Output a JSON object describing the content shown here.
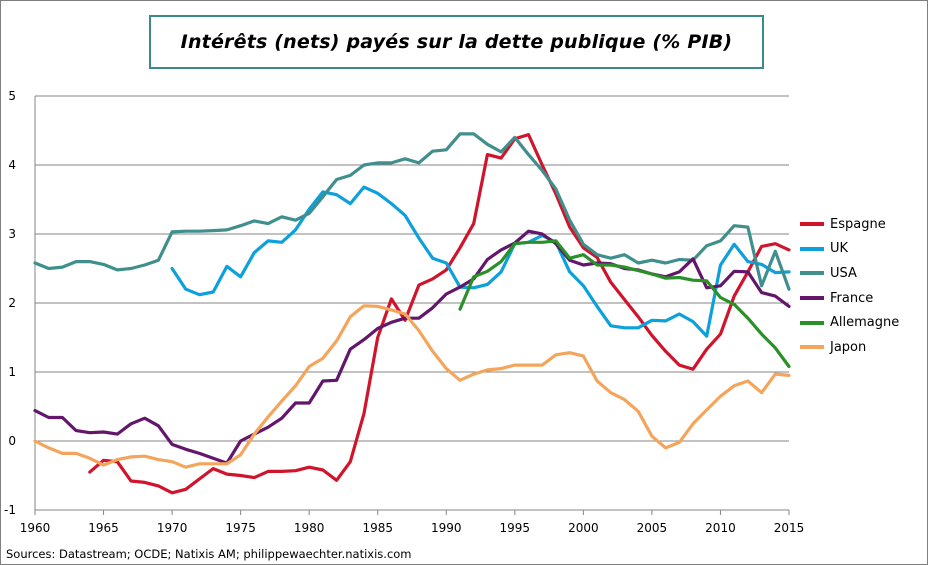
{
  "title": "Intérêts (nets) payés sur la dette publique (% PIB)",
  "source": "Sources: Datastream; OCDE; Natixis AM; philippewaechter.natixis.com",
  "chart_data": {
    "type": "line",
    "title": "Intérêts (nets) payés sur la dette publique (% PIB)",
    "xlabel": "",
    "ylabel": "",
    "xlim": [
      1960,
      2015
    ],
    "ylim": [
      -1,
      5
    ],
    "x_ticks": [
      "1960",
      "1965",
      "1970",
      "1975",
      "1980",
      "1985",
      "1990",
      "1995",
      "2000",
      "2005",
      "2010",
      "2015"
    ],
    "y_ticks": [
      "-1",
      "0",
      "1",
      "2",
      "3",
      "4",
      "5"
    ],
    "grid": "horizontal",
    "legend_position": "right",
    "series": [
      {
        "name": "Espagne",
        "color": "#d0142c",
        "points": [
          [
            1964,
            -0.45
          ],
          [
            1965,
            -0.28
          ],
          [
            1966,
            -0.3
          ],
          [
            1967,
            -0.58
          ],
          [
            1968,
            -0.6
          ],
          [
            1969,
            -0.65
          ],
          [
            1970,
            -0.75
          ],
          [
            1971,
            -0.7
          ],
          [
            1972,
            -0.55
          ],
          [
            1973,
            -0.4
          ],
          [
            1974,
            -0.48
          ],
          [
            1975,
            -0.5
          ],
          [
            1976,
            -0.53
          ],
          [
            1977,
            -0.44
          ],
          [
            1978,
            -0.44
          ],
          [
            1979,
            -0.43
          ],
          [
            1980,
            -0.38
          ],
          [
            1981,
            -0.42
          ],
          [
            1982,
            -0.57
          ],
          [
            1983,
            -0.3
          ],
          [
            1984,
            0.4
          ],
          [
            1985,
            1.5
          ],
          [
            1986,
            2.06
          ],
          [
            1987,
            1.75
          ],
          [
            1988,
            2.26
          ],
          [
            1989,
            2.35
          ],
          [
            1990,
            2.48
          ],
          [
            1991,
            2.8
          ],
          [
            1992,
            3.15
          ],
          [
            1993,
            4.15
          ],
          [
            1994,
            4.1
          ],
          [
            1995,
            4.38
          ],
          [
            1996,
            4.44
          ],
          [
            1997,
            4.0
          ],
          [
            1998,
            3.58
          ],
          [
            1999,
            3.1
          ],
          [
            2000,
            2.8
          ],
          [
            2001,
            2.66
          ],
          [
            2002,
            2.3
          ],
          [
            2003,
            2.05
          ],
          [
            2004,
            1.8
          ],
          [
            2005,
            1.53
          ],
          [
            2006,
            1.3
          ],
          [
            2007,
            1.1
          ],
          [
            2008,
            1.04
          ],
          [
            2009,
            1.33
          ],
          [
            2010,
            1.55
          ],
          [
            2011,
            2.1
          ],
          [
            2012,
            2.45
          ],
          [
            2013,
            2.82
          ],
          [
            2014,
            2.86
          ],
          [
            2015,
            2.77
          ]
        ]
      },
      {
        "name": "UK",
        "color": "#0ca0dc",
        "points": [
          [
            1970,
            2.5
          ],
          [
            1971,
            2.2
          ],
          [
            1972,
            2.12
          ],
          [
            1973,
            2.16
          ],
          [
            1974,
            2.53
          ],
          [
            1975,
            2.38
          ],
          [
            1976,
            2.73
          ],
          [
            1977,
            2.9
          ],
          [
            1978,
            2.88
          ],
          [
            1979,
            3.06
          ],
          [
            1980,
            3.36
          ],
          [
            1981,
            3.61
          ],
          [
            1982,
            3.57
          ],
          [
            1983,
            3.44
          ],
          [
            1984,
            3.68
          ],
          [
            1985,
            3.59
          ],
          [
            1986,
            3.44
          ],
          [
            1987,
            3.27
          ],
          [
            1988,
            2.94
          ],
          [
            1989,
            2.65
          ],
          [
            1990,
            2.58
          ],
          [
            1991,
            2.23
          ],
          [
            1992,
            2.22
          ],
          [
            1993,
            2.27
          ],
          [
            1994,
            2.45
          ],
          [
            1995,
            2.86
          ],
          [
            1996,
            2.88
          ],
          [
            1997,
            2.98
          ],
          [
            1998,
            2.88
          ],
          [
            1999,
            2.45
          ],
          [
            2000,
            2.25
          ],
          [
            2001,
            1.95
          ],
          [
            2002,
            1.67
          ],
          [
            2003,
            1.64
          ],
          [
            2004,
            1.64
          ],
          [
            2005,
            1.75
          ],
          [
            2006,
            1.74
          ],
          [
            2007,
            1.84
          ],
          [
            2008,
            1.73
          ],
          [
            2009,
            1.52
          ],
          [
            2010,
            2.55
          ],
          [
            2011,
            2.85
          ],
          [
            2012,
            2.6
          ],
          [
            2013,
            2.56
          ],
          [
            2014,
            2.44
          ],
          [
            2015,
            2.45
          ]
        ]
      },
      {
        "name": "USA",
        "color": "#3f8f8d",
        "points": [
          [
            1960,
            2.58
          ],
          [
            1961,
            2.5
          ],
          [
            1962,
            2.52
          ],
          [
            1963,
            2.6
          ],
          [
            1964,
            2.6
          ],
          [
            1965,
            2.56
          ],
          [
            1966,
            2.48
          ],
          [
            1967,
            2.5
          ],
          [
            1968,
            2.55
          ],
          [
            1969,
            2.62
          ],
          [
            1970,
            3.03
          ],
          [
            1971,
            3.04
          ],
          [
            1972,
            3.04
          ],
          [
            1973,
            3.05
          ],
          [
            1974,
            3.06
          ],
          [
            1975,
            3.12
          ],
          [
            1976,
            3.19
          ],
          [
            1977,
            3.15
          ],
          [
            1978,
            3.25
          ],
          [
            1979,
            3.2
          ],
          [
            1980,
            3.3
          ],
          [
            1981,
            3.54
          ],
          [
            1982,
            3.79
          ],
          [
            1983,
            3.85
          ],
          [
            1984,
            4.0
          ],
          [
            1985,
            4.03
          ],
          [
            1986,
            4.03
          ],
          [
            1987,
            4.09
          ],
          [
            1988,
            4.03
          ],
          [
            1989,
            4.2
          ],
          [
            1990,
            4.22
          ],
          [
            1991,
            4.45
          ],
          [
            1992,
            4.45
          ],
          [
            1993,
            4.3
          ],
          [
            1994,
            4.19
          ],
          [
            1995,
            4.4
          ],
          [
            1996,
            4.15
          ],
          [
            1997,
            3.92
          ],
          [
            1998,
            3.65
          ],
          [
            1999,
            3.2
          ],
          [
            2000,
            2.85
          ],
          [
            2001,
            2.7
          ],
          [
            2002,
            2.65
          ],
          [
            2003,
            2.7
          ],
          [
            2004,
            2.58
          ],
          [
            2005,
            2.62
          ],
          [
            2006,
            2.58
          ],
          [
            2007,
            2.63
          ],
          [
            2008,
            2.62
          ],
          [
            2009,
            2.83
          ],
          [
            2010,
            2.9
          ],
          [
            2011,
            3.12
          ],
          [
            2012,
            3.1
          ],
          [
            2013,
            2.25
          ],
          [
            2014,
            2.75
          ],
          [
            2015,
            2.2
          ]
        ]
      },
      {
        "name": "France",
        "color": "#62176b",
        "points": [
          [
            1960,
            0.44
          ],
          [
            1961,
            0.34
          ],
          [
            1962,
            0.34
          ],
          [
            1963,
            0.15
          ],
          [
            1964,
            0.12
          ],
          [
            1965,
            0.13
          ],
          [
            1966,
            0.1
          ],
          [
            1967,
            0.25
          ],
          [
            1968,
            0.33
          ],
          [
            1969,
            0.22
          ],
          [
            1970,
            -0.05
          ],
          [
            1971,
            -0.12
          ],
          [
            1972,
            -0.18
          ],
          [
            1973,
            -0.25
          ],
          [
            1974,
            -0.32
          ],
          [
            1975,
            0.0
          ],
          [
            1976,
            0.1
          ],
          [
            1977,
            0.2
          ],
          [
            1978,
            0.33
          ],
          [
            1979,
            0.55
          ],
          [
            1980,
            0.55
          ],
          [
            1981,
            0.87
          ],
          [
            1982,
            0.88
          ],
          [
            1983,
            1.33
          ],
          [
            1984,
            1.47
          ],
          [
            1985,
            1.63
          ],
          [
            1986,
            1.72
          ],
          [
            1987,
            1.78
          ],
          [
            1988,
            1.78
          ],
          [
            1989,
            1.93
          ],
          [
            1990,
            2.13
          ],
          [
            1991,
            2.23
          ],
          [
            1992,
            2.35
          ],
          [
            1993,
            2.63
          ],
          [
            1994,
            2.77
          ],
          [
            1995,
            2.87
          ],
          [
            1996,
            3.04
          ],
          [
            1997,
            3.0
          ],
          [
            1998,
            2.86
          ],
          [
            1999,
            2.62
          ],
          [
            2000,
            2.55
          ],
          [
            2001,
            2.58
          ],
          [
            2002,
            2.57
          ],
          [
            2003,
            2.5
          ],
          [
            2004,
            2.48
          ],
          [
            2005,
            2.42
          ],
          [
            2006,
            2.38
          ],
          [
            2007,
            2.45
          ],
          [
            2008,
            2.64
          ],
          [
            2009,
            2.22
          ],
          [
            2010,
            2.25
          ],
          [
            2011,
            2.46
          ],
          [
            2012,
            2.45
          ],
          [
            2013,
            2.15
          ],
          [
            2014,
            2.1
          ],
          [
            2015,
            1.95
          ]
        ]
      },
      {
        "name": "Allemagne",
        "color": "#299128",
        "points": [
          [
            1991,
            1.91
          ],
          [
            1992,
            2.38
          ],
          [
            1993,
            2.46
          ],
          [
            1994,
            2.6
          ],
          [
            1995,
            2.86
          ],
          [
            1996,
            2.88
          ],
          [
            1997,
            2.88
          ],
          [
            1998,
            2.9
          ],
          [
            1999,
            2.65
          ],
          [
            2000,
            2.7
          ],
          [
            2001,
            2.55
          ],
          [
            2002,
            2.55
          ],
          [
            2003,
            2.52
          ],
          [
            2004,
            2.47
          ],
          [
            2005,
            2.42
          ],
          [
            2006,
            2.36
          ],
          [
            2007,
            2.37
          ],
          [
            2008,
            2.33
          ],
          [
            2009,
            2.32
          ],
          [
            2010,
            2.08
          ],
          [
            2011,
            1.98
          ],
          [
            2012,
            1.78
          ],
          [
            2013,
            1.55
          ],
          [
            2014,
            1.35
          ],
          [
            2015,
            1.08
          ]
        ]
      },
      {
        "name": "Japon",
        "color": "#f4a55c",
        "points": [
          [
            1960,
            0.0
          ],
          [
            1961,
            -0.1
          ],
          [
            1962,
            -0.18
          ],
          [
            1963,
            -0.18
          ],
          [
            1964,
            -0.25
          ],
          [
            1965,
            -0.35
          ],
          [
            1966,
            -0.27
          ],
          [
            1967,
            -0.23
          ],
          [
            1968,
            -0.22
          ],
          [
            1969,
            -0.27
          ],
          [
            1970,
            -0.3
          ],
          [
            1971,
            -0.38
          ],
          [
            1972,
            -0.33
          ],
          [
            1973,
            -0.33
          ],
          [
            1974,
            -0.33
          ],
          [
            1975,
            -0.2
          ],
          [
            1976,
            0.1
          ],
          [
            1977,
            0.35
          ],
          [
            1978,
            0.58
          ],
          [
            1979,
            0.8
          ],
          [
            1980,
            1.08
          ],
          [
            1981,
            1.2
          ],
          [
            1982,
            1.45
          ],
          [
            1983,
            1.8
          ],
          [
            1984,
            1.96
          ],
          [
            1985,
            1.95
          ],
          [
            1986,
            1.9
          ],
          [
            1987,
            1.84
          ],
          [
            1988,
            1.6
          ],
          [
            1989,
            1.3
          ],
          [
            1990,
            1.05
          ],
          [
            1991,
            0.88
          ],
          [
            1992,
            0.97
          ],
          [
            1993,
            1.03
          ],
          [
            1994,
            1.05
          ],
          [
            1995,
            1.1
          ],
          [
            1996,
            1.1
          ],
          [
            1997,
            1.1
          ],
          [
            1998,
            1.25
          ],
          [
            1999,
            1.28
          ],
          [
            2000,
            1.23
          ],
          [
            2001,
            0.87
          ],
          [
            2002,
            0.7
          ],
          [
            2003,
            0.6
          ],
          [
            2004,
            0.43
          ],
          [
            2005,
            0.07
          ],
          [
            2006,
            -0.1
          ],
          [
            2007,
            -0.02
          ],
          [
            2008,
            0.25
          ],
          [
            2009,
            0.45
          ],
          [
            2010,
            0.65
          ],
          [
            2011,
            0.8
          ],
          [
            2012,
            0.87
          ],
          [
            2013,
            0.7
          ],
          [
            2014,
            0.97
          ],
          [
            2015,
            0.95
          ]
        ]
      }
    ]
  }
}
